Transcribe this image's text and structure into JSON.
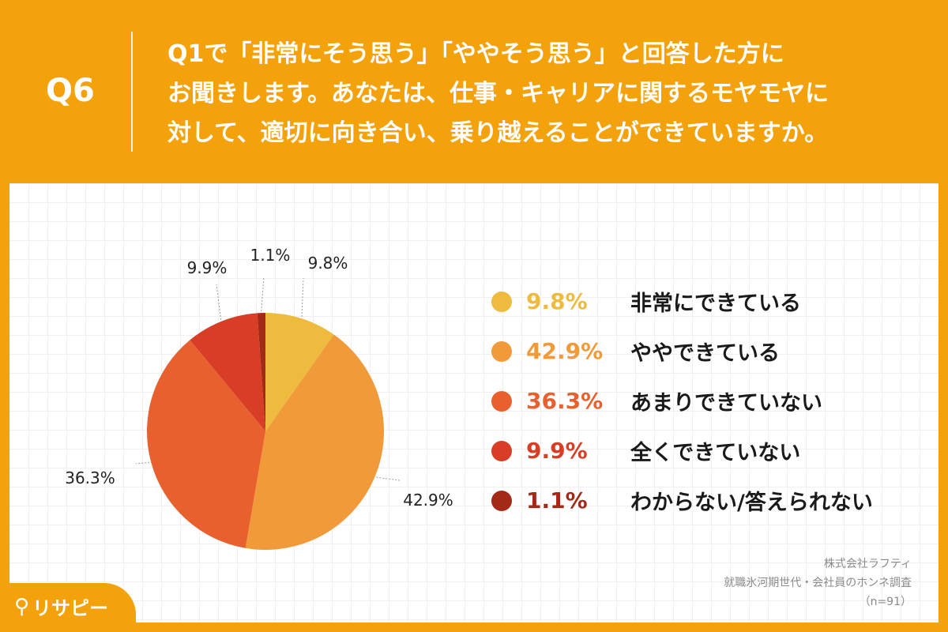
{
  "header": {
    "question_number": "Q6",
    "question_text": "Q1で「非常にそう思う」「ややそう思う」と回答した方に\nお聞きします。あなたは、仕事・キャリアに関するモヤモヤに\n対して、適切に向き合い、乗り越えることができていますか。"
  },
  "chart_data": {
    "type": "pie",
    "categories": [
      "非常にできている",
      "ややできている",
      "あまりできていない",
      "全くできていない",
      "わからない/答えられない"
    ],
    "values": [
      9.8,
      42.9,
      36.3,
      9.9,
      1.1
    ],
    "labels": [
      "9.8%",
      "42.9%",
      "36.3%",
      "9.9%",
      "1.1%"
    ],
    "colors": [
      "#EEBB3F",
      "#F09A3A",
      "#E8602D",
      "#D73E25",
      "#A42A18"
    ],
    "start": "top",
    "direction": "clockwise",
    "legend_position": "right"
  },
  "source": {
    "line1": "株式会社ラフティ",
    "line2": "就職氷河期世代・会社員のホンネ調査",
    "line3": "（n=91）"
  },
  "logo": {
    "text": "リサピー",
    "icon": "pin-icon"
  }
}
